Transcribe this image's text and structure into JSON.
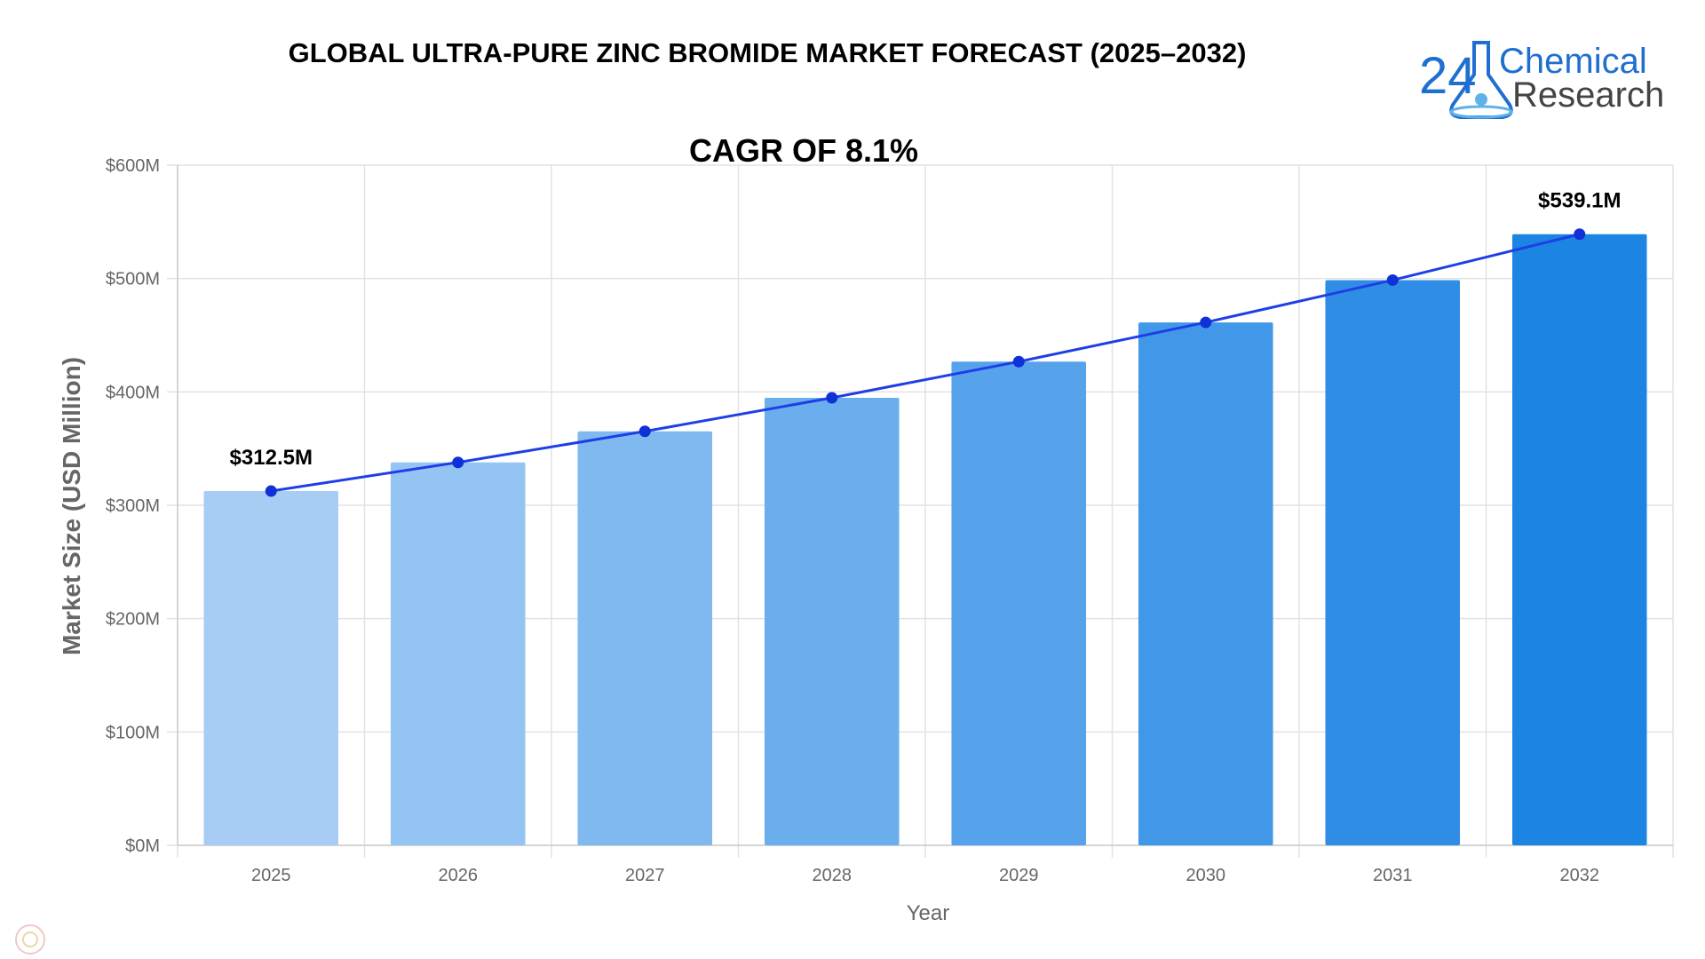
{
  "logo": {
    "number": "24",
    "line1": "Chemical",
    "line2": "Research",
    "color_primary": "#1f6fd1",
    "color_secondary": "#444444"
  },
  "chart_data": {
    "type": "bar",
    "title": "GLOBAL ULTRA-PURE ZINC BROMIDE MARKET FORECAST (2025–2032)",
    "subtitle": "CAGR OF 8.1%",
    "xlabel": "Year",
    "ylabel": "Market Size (USD Million)",
    "categories": [
      "2025",
      "2026",
      "2027",
      "2028",
      "2029",
      "2030",
      "2031",
      "2032"
    ],
    "values": [
      312.5,
      337.8,
      365.2,
      394.8,
      426.7,
      461.3,
      498.6,
      539.1
    ],
    "line_values": [
      312.5,
      337.8,
      365.2,
      394.8,
      426.7,
      461.3,
      498.6,
      539.1
    ],
    "ylim": [
      0,
      600
    ],
    "yticks": [
      0,
      100,
      200,
      300,
      400,
      500,
      600
    ],
    "ytick_labels": [
      "$0M",
      "$100M",
      "$200M",
      "$300M",
      "$400M",
      "$500M",
      "$600M"
    ],
    "annotations": [
      {
        "index": 0,
        "text": "$312.5M"
      },
      {
        "index": 7,
        "text": "$539.1M"
      }
    ],
    "grid": true,
    "bar_colors": [
      "#a8cdf5",
      "#94c4f3",
      "#80b9f0",
      "#6aaeed",
      "#56a3eb",
      "#4298e8",
      "#2f8de6",
      "#1c84e3"
    ],
    "line_color": "#1f3ee6",
    "point_color": "#1030d8"
  }
}
